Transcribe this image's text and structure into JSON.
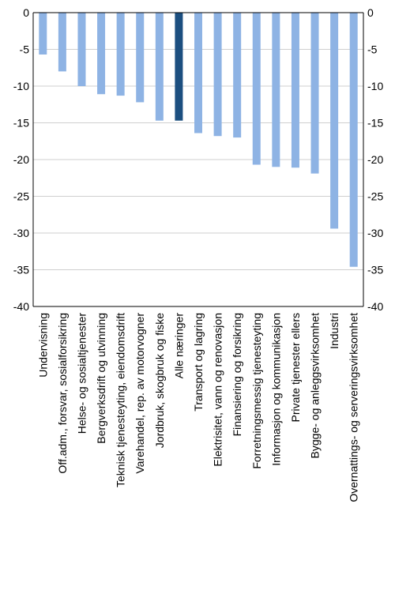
{
  "chart_data": {
    "type": "bar",
    "title": "",
    "xlabel": "",
    "ylabel": "",
    "ylim": [
      -40,
      0
    ],
    "yticks": [
      0,
      -5,
      -10,
      -15,
      -20,
      -25,
      -30,
      -35,
      -40
    ],
    "ytick_labels": [
      "0",
      "-5",
      "-10",
      "-15",
      "-20",
      "-25",
      "-30",
      "-35",
      "-40"
    ],
    "grid": "horizontal",
    "legend": "none",
    "axis_labels_on": "left-and-right",
    "categories": [
      "Undervisning",
      "Off.adm., forsvar, sosialforsikring",
      "Helse- og sosialtjenester",
      "Bergverksdrift og utvinning",
      "Teknisk tjenesteyting, eiendomsdrift",
      "Varehandel, rep. av motorvogner",
      "Jordbruk, skogbruk og fiske",
      "Alle næringer",
      "Transport og lagring",
      "Elektrisitet, vann og renovasjon",
      "Finansiering og forsikring",
      "Forretningsmessig tjenesteyting",
      "Informasjon og kommunikasjon",
      "Private tjenester ellers",
      "Bygge- og anleggsvirksomhet",
      "Industri",
      "Overnattings- og serveringsvirksomhet"
    ],
    "values": [
      -5.7,
      -8.0,
      -10.0,
      -11.1,
      -11.3,
      -12.2,
      -14.7,
      -14.7,
      -16.4,
      -16.8,
      -17.0,
      -20.7,
      -21.0,
      -21.1,
      -21.9,
      -29.4,
      -34.6
    ],
    "highlight_index": 7,
    "colors": {
      "bar": "#8eb3e4",
      "highlight": "#1c4f80",
      "grid": "#cfcfcf",
      "axis": "#000000"
    }
  }
}
